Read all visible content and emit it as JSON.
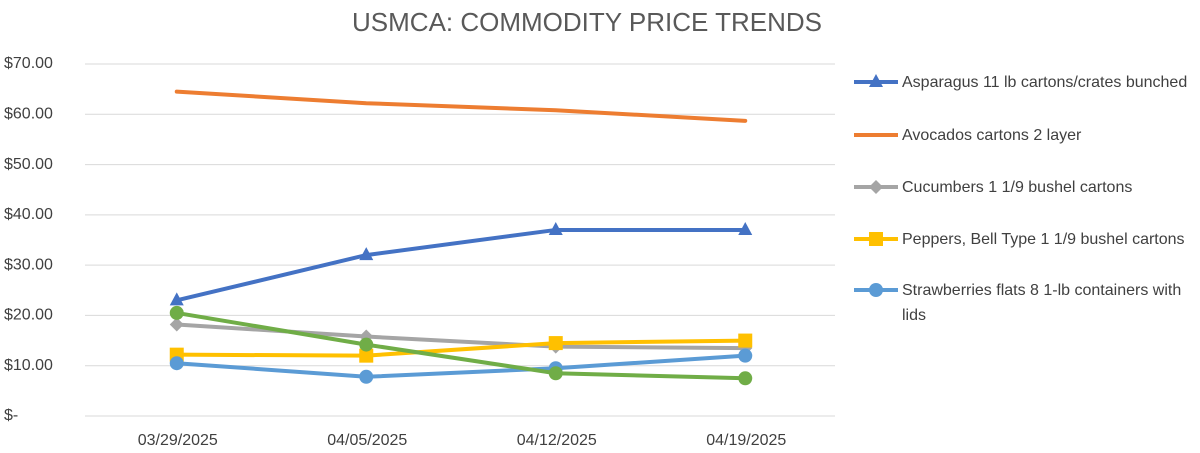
{
  "chart_data": {
    "type": "line",
    "title": "USMCA: COMMODITY PRICE TRENDS",
    "categories": [
      "03/29/2025",
      "04/05/2025",
      "04/12/2025",
      "04/19/2025"
    ],
    "series": [
      {
        "name": "Asparagus 11 lb cartons/crates bunched",
        "color": "#4472c4",
        "marker": "triangle",
        "values": [
          23,
          32,
          37,
          37
        ]
      },
      {
        "name": "Avocados cartons 2 layer",
        "color": "#ed7d31",
        "values": [
          64.5,
          62.2,
          60.8,
          58.7
        ]
      },
      {
        "name": "Cucumbers 1 1/9 bushel cartons",
        "color": "#a5a5a5",
        "marker": "diamond",
        "values": [
          18.2,
          15.8,
          13.8,
          13.5
        ]
      },
      {
        "name": "Peppers, Bell Type 1 1/9 bushel cartons",
        "color": "#ffc000",
        "marker": "square",
        "values": [
          12.2,
          12,
          14.5,
          15
        ]
      },
      {
        "name": "Strawberries flats 8 1-lb containers with lids",
        "color": "#5b9bd5",
        "marker": "circle",
        "values": [
          10.5,
          7.8,
          9.5,
          12
        ]
      },
      {
        "color": "#70ad47",
        "marker": "circle",
        "values": [
          20.5,
          14.2,
          8.5,
          7.5
        ]
      }
    ],
    "ylim": [
      0,
      70
    ],
    "yticks": [
      {
        "value": 0,
        "label": "$-"
      },
      {
        "value": 10,
        "label": "$10.00"
      },
      {
        "value": 20,
        "label": "$20.00"
      },
      {
        "value": 30,
        "label": "$30.00"
      },
      {
        "value": 40,
        "label": "$40.00"
      },
      {
        "value": 50,
        "label": "$50.00"
      },
      {
        "value": 60,
        "label": "$60.00"
      },
      {
        "value": 70,
        "label": "$70.00"
      }
    ],
    "grid": true,
    "legend": "right"
  }
}
